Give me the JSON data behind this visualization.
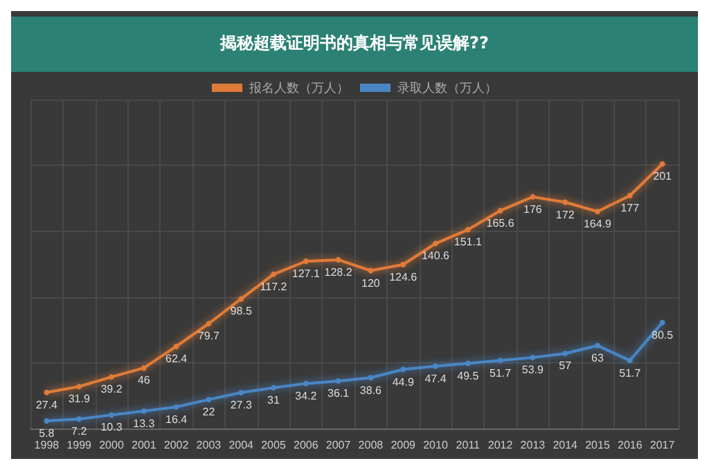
{
  "chart_data": {
    "type": "line",
    "title": "揭秘超载证明书的真相与常见误解??",
    "categories": [
      "1998",
      "1999",
      "2000",
      "2001",
      "2002",
      "2003",
      "2004",
      "2005",
      "2006",
      "2007",
      "2008",
      "2009",
      "2010",
      "2011",
      "2012",
      "2013",
      "2014",
      "2015",
      "2016",
      "2017"
    ],
    "series": [
      {
        "name": "报名人数（万人）",
        "color": "#e07b39",
        "values": [
          27.4,
          31.9,
          39.2,
          46,
          62.4,
          79.7,
          98.5,
          117.2,
          127.1,
          128.2,
          120,
          124.6,
          140.6,
          151.1,
          165.6,
          176,
          172,
          164.9,
          177,
          201
        ]
      },
      {
        "name": "录取人数（万人）",
        "color": "#4a86c5",
        "values": [
          5.8,
          7.2,
          10.3,
          13.3,
          16.4,
          22,
          27.3,
          31,
          34.2,
          36.1,
          38.6,
          44.9,
          47.4,
          49.5,
          51.7,
          53.9,
          57,
          63,
          51.7,
          80.5
        ]
      }
    ],
    "data_labels": true,
    "grid": true,
    "legend": "top",
    "marker": "circle",
    "line_style": "solid",
    "tick_labels": "x"
  }
}
